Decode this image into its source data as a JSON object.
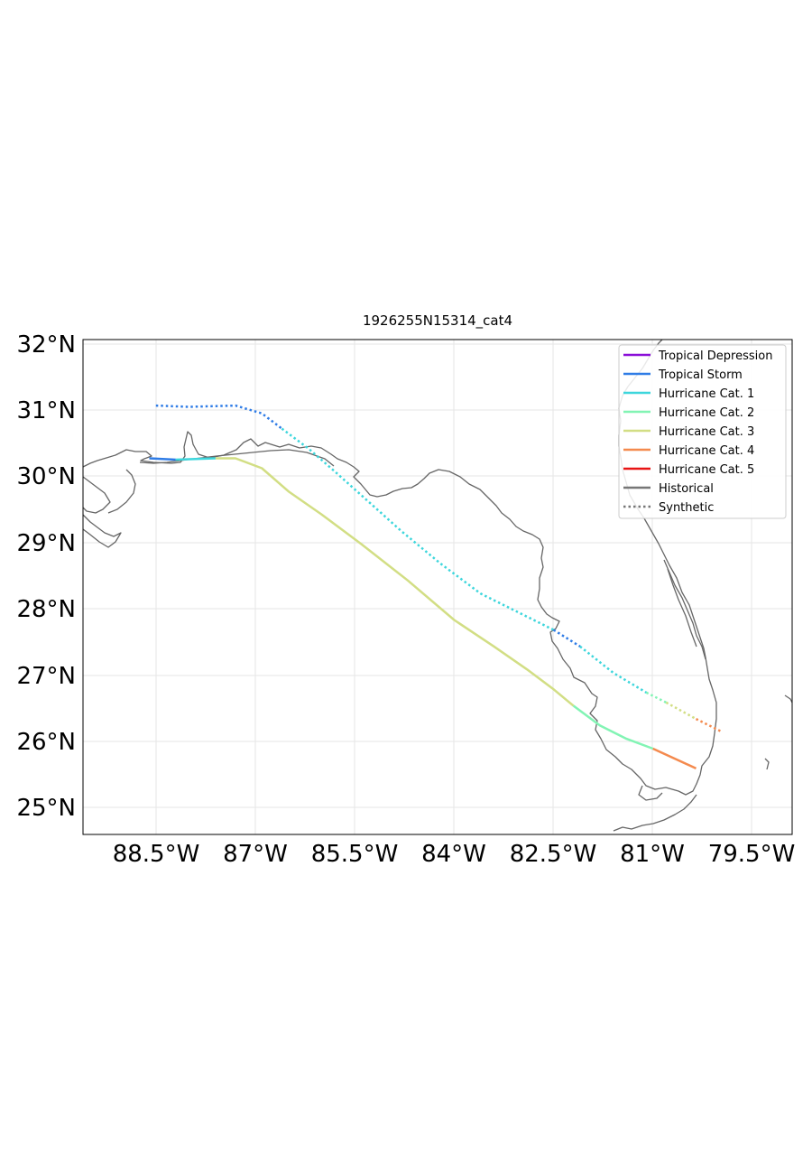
{
  "title": "1926255N15314_cat4",
  "lon_ticks": [
    "88.5°W",
    "87°W",
    "85.5°W",
    "84°W",
    "82.5°W",
    "81°W",
    "79.5°W"
  ],
  "lat_ticks": [
    "32°N",
    "31°N",
    "30°N",
    "29°N",
    "28°N",
    "27°N",
    "26°N",
    "25°N"
  ],
  "legend": [
    {
      "label": "Tropical Depression",
      "color": "#8a0ed8",
      "style": "solid"
    },
    {
      "label": "Tropical Storm",
      "color": "#2f7ce6",
      "style": "solid"
    },
    {
      "label": "Hurricane Cat. 1",
      "color": "#3dd6dc",
      "style": "solid"
    },
    {
      "label": "Hurricane Cat. 2",
      "color": "#82f4b4",
      "style": "solid"
    },
    {
      "label": "Hurricane Cat. 3",
      "color": "#d2de84",
      "style": "solid"
    },
    {
      "label": "Hurricane Cat. 4",
      "color": "#f48a4e",
      "style": "solid"
    },
    {
      "label": "Hurricane Cat. 5",
      "color": "#e81414",
      "style": "solid"
    },
    {
      "label": "Historical",
      "color": "#777777",
      "style": "solid"
    },
    {
      "label": "Synthetic",
      "color": "#777777",
      "style": "dotted"
    }
  ],
  "map": {
    "lon_range": [
      -89.6,
      -78.9
    ],
    "lat_range": [
      24.6,
      32.1
    ],
    "grid": true,
    "legend_position": "top-right"
  },
  "tracks": [
    {
      "type": "historical",
      "segments": [
        {
          "category": "Tropical Storm",
          "color": "#2f7ce6",
          "points": [
            [
              -88.6,
              30.3
            ],
            [
              -88.2,
              30.28
            ]
          ]
        },
        {
          "category": "Hurricane Cat. 1",
          "color": "#3dd6dc",
          "points": [
            [
              -88.2,
              30.28
            ],
            [
              -87.6,
              30.3
            ]
          ]
        },
        {
          "category": "Hurricane Cat. 3",
          "color": "#d2de84",
          "points": [
            [
              -87.6,
              30.3
            ],
            [
              -87.3,
              30.3
            ],
            [
              -86.9,
              30.15
            ],
            [
              -86.5,
              29.8
            ],
            [
              -86.0,
              29.45
            ],
            [
              -85.4,
              29.0
            ],
            [
              -84.7,
              28.45
            ],
            [
              -84.0,
              27.85
            ],
            [
              -83.4,
              27.45
            ],
            [
              -82.9,
              27.1
            ],
            [
              -82.5,
              26.8
            ],
            [
              -82.2,
              26.55
            ]
          ]
        },
        {
          "category": "Hurricane Cat. 2",
          "color": "#82f4b4",
          "points": [
            [
              -82.2,
              26.55
            ],
            [
              -81.8,
              26.25
            ],
            [
              -81.4,
              26.05
            ],
            [
              -81.0,
              25.9
            ]
          ]
        },
        {
          "category": "Hurricane Cat. 4",
          "color": "#f48a4e",
          "points": [
            [
              -81.0,
              25.9
            ],
            [
              -80.35,
              25.6
            ]
          ]
        }
      ]
    },
    {
      "type": "synthetic",
      "segments": [
        {
          "category": "Tropical Storm",
          "color": "#2f7ce6",
          "points": [
            [
              -88.5,
              31.1
            ],
            [
              -88.0,
              31.08
            ],
            [
              -87.3,
              31.1
            ],
            [
              -86.9,
              30.98
            ],
            [
              -86.6,
              30.75
            ]
          ]
        },
        {
          "category": "Hurricane Cat. 1",
          "color": "#3dd6dc",
          "points": [
            [
              -86.6,
              30.75
            ],
            [
              -86.2,
              30.45
            ],
            [
              -85.8,
              30.1
            ],
            [
              -85.3,
              29.65
            ],
            [
              -84.8,
              29.2
            ],
            [
              -84.2,
              28.7
            ],
            [
              -83.6,
              28.25
            ],
            [
              -83.0,
              27.95
            ],
            [
              -82.5,
              27.7
            ]
          ]
        },
        {
          "category": "Tropical Storm",
          "color": "#2f7ce6",
          "points": [
            [
              -82.5,
              27.7
            ],
            [
              -82.1,
              27.45
            ]
          ]
        },
        {
          "category": "Hurricane Cat. 1",
          "color": "#3dd6dc",
          "points": [
            [
              -82.1,
              27.45
            ],
            [
              -81.6,
              27.05
            ],
            [
              -81.1,
              26.75
            ]
          ]
        },
        {
          "category": "Hurricane Cat. 2",
          "color": "#82f4b4",
          "points": [
            [
              -81.1,
              26.75
            ],
            [
              -80.8,
              26.6
            ]
          ]
        },
        {
          "category": "Hurricane Cat. 3",
          "color": "#d2de84",
          "points": [
            [
              -80.8,
              26.6
            ],
            [
              -80.35,
              26.35
            ]
          ]
        },
        {
          "category": "Hurricane Cat. 4",
          "color": "#f48a4e",
          "points": [
            [
              -80.35,
              26.35
            ],
            [
              -79.95,
              26.15
            ]
          ]
        }
      ]
    }
  ]
}
